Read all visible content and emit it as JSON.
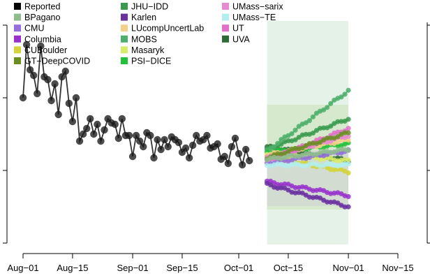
{
  "chart_data": {
    "type": "line",
    "title": "",
    "xlabel": "",
    "ylabel": "",
    "x_ticks": [
      "Aug−01",
      "Aug−15",
      "Sep−01",
      "Sep−15",
      "Oct−01",
      "Oct−15",
      "Nov−01",
      "Nov−15"
    ],
    "x_tick_days": [
      0,
      14,
      31,
      45,
      61,
      75,
      92,
      106
    ],
    "xlim_days": [
      0,
      106
    ],
    "y_axis": "unlabeled, 4 ticks on left and right",
    "legend_position": "top-left",
    "forecast_band_days": [
      69,
      92
    ],
    "legend": [
      {
        "name": "Reported",
        "color": "#000000"
      },
      {
        "name": "BPagano",
        "color": "#8fbc8f"
      },
      {
        "name": "CMU",
        "color": "#9370db"
      },
      {
        "name": "Columbia",
        "color": "#9932cc"
      },
      {
        "name": "CUBoulder",
        "color": "#d4d43a"
      },
      {
        "name": "GT−DeepCOVID",
        "color": "#6b8e23"
      },
      {
        "name": "JHU−IDD",
        "color": "#3a9a4e"
      },
      {
        "name": "Karlen",
        "color": "#6a2fa0"
      },
      {
        "name": "LUcompUncertLab",
        "color": "#f5d08a"
      },
      {
        "name": "MOBS",
        "color": "#4caf6a"
      },
      {
        "name": "Masaryk",
        "color": "#d9ec6a"
      },
      {
        "name": "PSI−DICE",
        "color": "#22c13a"
      },
      {
        "name": "UMass−sarix",
        "color": "#e68ad1"
      },
      {
        "name": "UMass−TE",
        "color": "#b2eef0"
      },
      {
        "name": "UT",
        "color": "#e070c8"
      },
      {
        "name": "UVA",
        "color": "#2e6b35"
      }
    ],
    "reported": {
      "name": "Reported",
      "x_days": [
        0,
        1,
        2,
        3,
        4,
        5,
        6,
        7,
        8,
        9,
        10,
        11,
        12,
        13,
        14,
        15,
        16,
        17,
        18,
        19,
        20,
        21,
        22,
        23,
        24,
        25,
        26,
        27,
        28,
        29,
        30,
        31,
        32,
        33,
        34,
        35,
        36,
        37,
        38,
        39,
        40,
        41,
        42,
        43,
        44,
        45,
        46,
        47,
        48,
        49,
        50,
        51,
        52,
        53,
        54,
        55,
        56,
        57,
        58,
        59,
        60,
        61,
        62,
        63,
        64
      ],
      "y": [
        405,
        443,
        425,
        421,
        408,
        442,
        420,
        418,
        403,
        415,
        393,
        420,
        424,
        401,
        388,
        405,
        374,
        379,
        383,
        390,
        379,
        386,
        374,
        382,
        390,
        387,
        386,
        376,
        390,
        378,
        378,
        363,
        378,
        374,
        370,
        380,
        378,
        362,
        375,
        368,
        375,
        370,
        377,
        375,
        373,
        366,
        369,
        362,
        371,
        378,
        374,
        375,
        378,
        369,
        370,
        372,
        361,
        363,
        358,
        370,
        376,
        365,
        357,
        368,
        360
      ]
    },
    "forecast_series": [
      {
        "name": "UVA",
        "start": 370,
        "end": 360,
        "color": "#2e6b35"
      },
      {
        "name": "JHU−IDD",
        "start": 368,
        "end": 390,
        "color": "#3a9a4e"
      },
      {
        "name": "MOBS",
        "start": 367,
        "end": 410,
        "color": "#4caf6a"
      },
      {
        "name": "PSI−DICE",
        "start": 366,
        "end": 372,
        "color": "#22c13a"
      },
      {
        "name": "Masaryk",
        "start": 365,
        "end": 360,
        "color": "#d9ec6a"
      },
      {
        "name": "LUcompUncertLab",
        "start": 364,
        "end": 375,
        "color": "#f5d08a"
      },
      {
        "name": "CUBoulder",
        "start": 363,
        "end": 352,
        "color": "#d4d43a"
      },
      {
        "name": "UMass−sarix",
        "start": 362,
        "end": 378,
        "color": "#e68ad1"
      },
      {
        "name": "UT",
        "start": 360,
        "end": 383,
        "color": "#e070c8"
      },
      {
        "name": "CMU",
        "start": 358,
        "end": 367,
        "color": "#9370db"
      },
      {
        "name": "UMass−TE",
        "start": 357,
        "end": 357,
        "color": "#b2eef0"
      },
      {
        "name": "GT−DeepCOVID",
        "start": 362,
        "end": 380,
        "color": "#6b8e23"
      },
      {
        "name": "BPagano",
        "start": 361,
        "end": 368,
        "color": "#8fbc8f"
      },
      {
        "name": "Columbia",
        "start": 345,
        "end": 335,
        "color": "#9932cc"
      },
      {
        "name": "Karlen",
        "start": 343,
        "end": 327,
        "color": "#6a2fa0"
      }
    ]
  }
}
